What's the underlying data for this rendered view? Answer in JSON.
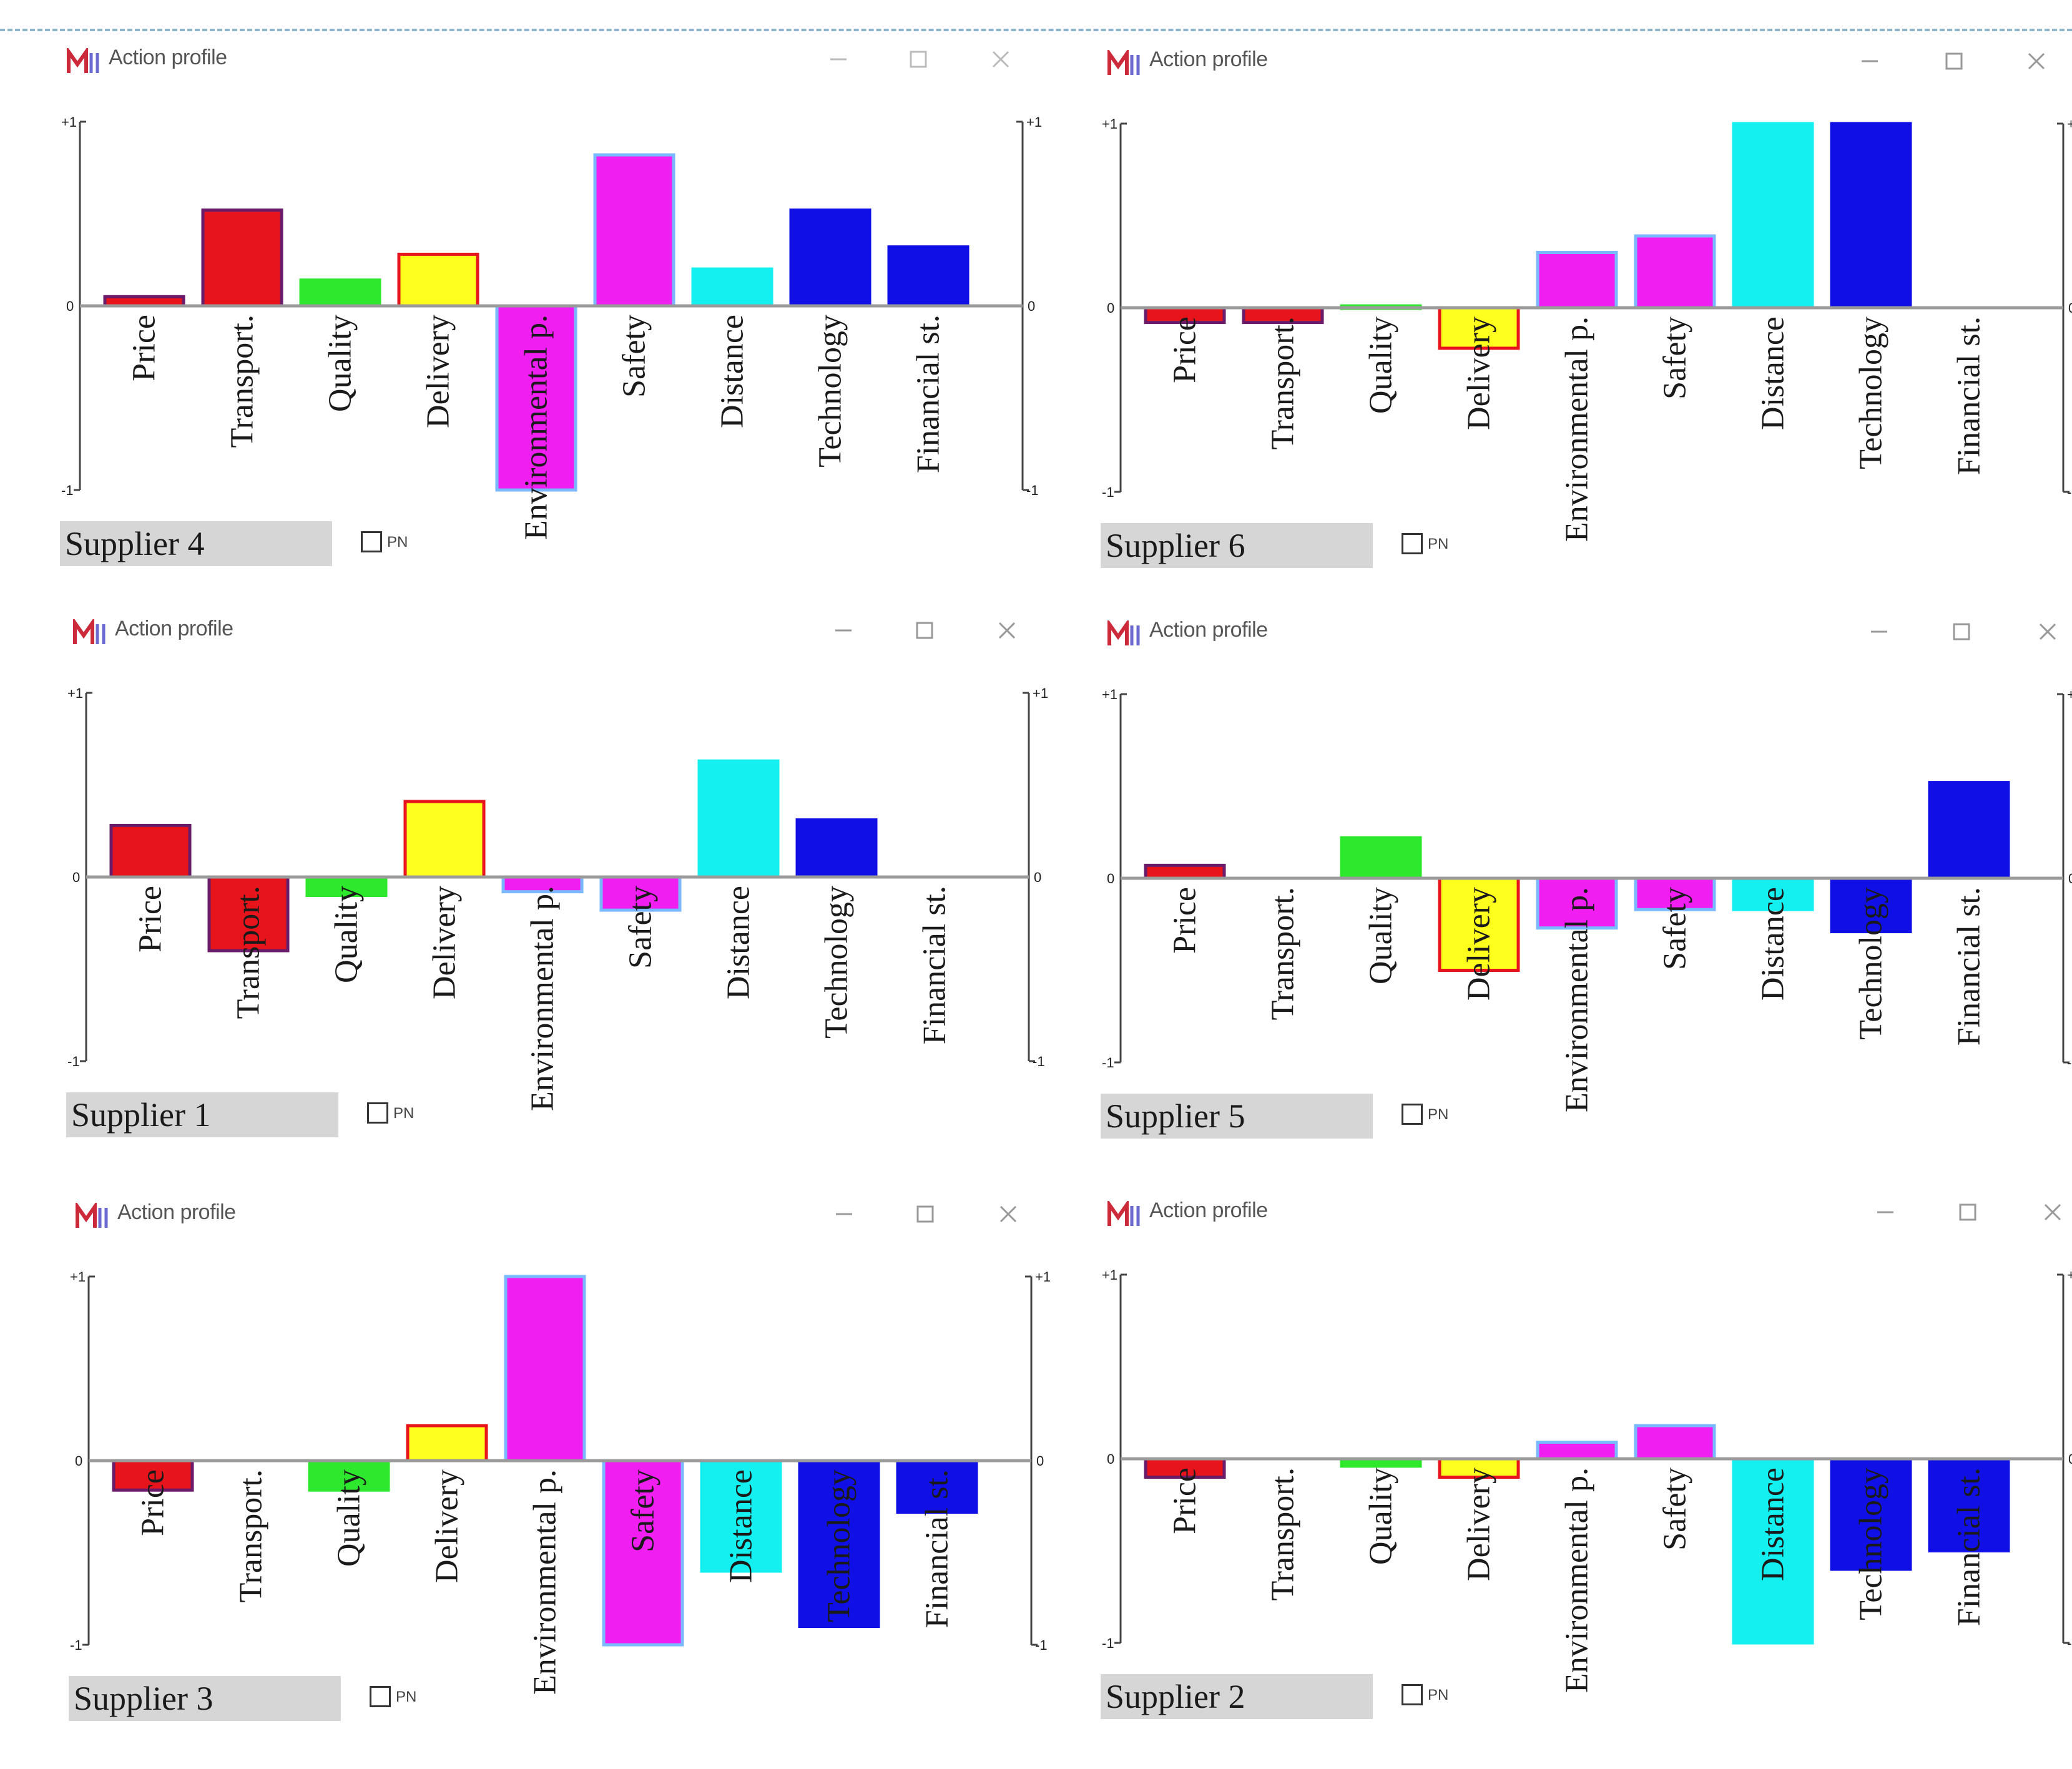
{
  "app": {
    "title": "Action profile"
  },
  "axis": {
    "top_label": "+1",
    "zero_label": "0",
    "bottom_label": "-1"
  },
  "checkbox_label": "PN",
  "colors": {
    "Price": "#e8141c",
    "Transport.": "#e8141c",
    "Quality": "#2ee82e",
    "Delivery": "#ffff1e",
    "Environmental p.": "#f01ef0",
    "Safety": "#f01ef0",
    "Distance": "#14f0f0",
    "Technology": "#1010e6",
    "Financial st.": "#1010e6"
  },
  "borders": {
    "Price": "#6a1b6a",
    "Transport.": "#6a1b6a",
    "Quality": "#2ee82e",
    "Delivery": "#e8141c",
    "Environmental p.": "#7ab8ff",
    "Safety": "#7ab8ff",
    "Distance": "#14f0f0",
    "Technology": "#1010e6",
    "Financial st.": "#1010e6"
  },
  "chart_data": [
    {
      "type": "bar",
      "title": "Supplier 4",
      "categories": [
        "Price",
        "Transport.",
        "Quality",
        "Delivery",
        "Environmental p.",
        "Safety",
        "Distance",
        "Technology",
        "Financial st."
      ],
      "values": [
        0.05,
        0.52,
        0.14,
        0.28,
        -1.0,
        0.82,
        0.2,
        0.52,
        0.32
      ],
      "ylim": [
        -1,
        1
      ]
    },
    {
      "type": "bar",
      "title": "Supplier 6",
      "categories": [
        "Price",
        "Transport.",
        "Quality",
        "Delivery",
        "Environmental p.",
        "Safety",
        "Distance",
        "Technology",
        "Financial st."
      ],
      "values": [
        -0.08,
        -0.08,
        0.01,
        -0.22,
        0.3,
        0.39,
        1.0,
        1.0,
        0.0
      ],
      "ylim": [
        -1,
        1
      ]
    },
    {
      "type": "bar",
      "title": "Supplier 1",
      "categories": [
        "Price",
        "Transport.",
        "Quality",
        "Delivery",
        "Environmental p.",
        "Safety",
        "Distance",
        "Technology",
        "Financial st."
      ],
      "values": [
        0.28,
        -0.4,
        -0.1,
        0.41,
        -0.08,
        -0.18,
        0.63,
        0.31,
        0.0
      ],
      "ylim": [
        -1,
        1
      ]
    },
    {
      "type": "bar",
      "title": "Supplier 5",
      "categories": [
        "Price",
        "Transport.",
        "Quality",
        "Delivery",
        "Environmental p.",
        "Safety",
        "Distance",
        "Technology",
        "Financial st."
      ],
      "values": [
        0.07,
        0.0,
        0.22,
        -0.5,
        -0.27,
        -0.17,
        -0.17,
        -0.29,
        0.52
      ],
      "ylim": [
        -1,
        1
      ]
    },
    {
      "type": "bar",
      "title": "Supplier 3",
      "categories": [
        "Price",
        "Transport.",
        "Quality",
        "Delivery",
        "Environmental p.",
        "Safety",
        "Distance",
        "Technology",
        "Financial st."
      ],
      "values": [
        -0.16,
        0.0,
        -0.16,
        0.19,
        1.0,
        -1.0,
        -0.6,
        -0.9,
        -0.28
      ],
      "ylim": [
        -1,
        1
      ]
    },
    {
      "type": "bar",
      "title": "Supplier 2",
      "categories": [
        "Price",
        "Transport.",
        "Quality",
        "Delivery",
        "Environmental p.",
        "Safety",
        "Distance",
        "Technology",
        "Financial st."
      ],
      "values": [
        -0.1,
        0.0,
        -0.04,
        -0.1,
        0.09,
        0.18,
        -1.0,
        -0.6,
        -0.5
      ],
      "ylim": [
        -1,
        1
      ]
    }
  ]
}
